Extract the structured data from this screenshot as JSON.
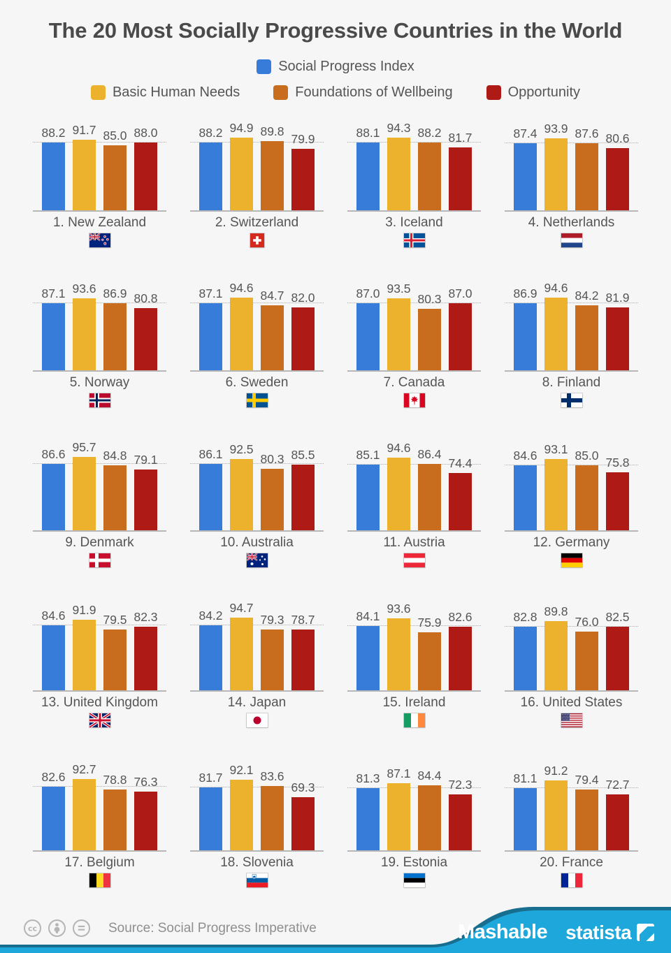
{
  "title": "The 20 Most Socially Progressive Countries in the World",
  "chart_data": {
    "type": "bar",
    "ylim": [
      0,
      100
    ],
    "gridline": "dotted reference line at the Social Progress Index value of each country",
    "series": [
      {
        "name": "Social Progress Index",
        "color": "#377cd8"
      },
      {
        "name": "Basic Human Needs",
        "color": "#ecb22d"
      },
      {
        "name": "Foundations of Wellbeing",
        "color": "#c76d1d"
      },
      {
        "name": "Opportunity",
        "color": "#ae1a15"
      }
    ],
    "countries": [
      {
        "rank": 1,
        "name": "New Zealand",
        "label": "1. New Zealand",
        "flag": "new-zealand",
        "values": [
          88.2,
          91.7,
          85.0,
          88.0
        ]
      },
      {
        "rank": 2,
        "name": "Switzerland",
        "label": "2. Switzerland",
        "flag": "switzerland",
        "values": [
          88.2,
          94.9,
          89.8,
          79.9
        ]
      },
      {
        "rank": 3,
        "name": "Iceland",
        "label": "3. Iceland",
        "flag": "iceland",
        "values": [
          88.1,
          94.3,
          88.2,
          81.7
        ]
      },
      {
        "rank": 4,
        "name": "Netherlands",
        "label": "4. Netherlands",
        "flag": "netherlands",
        "values": [
          87.4,
          93.9,
          87.6,
          80.6
        ]
      },
      {
        "rank": 5,
        "name": "Norway",
        "label": "5. Norway",
        "flag": "norway",
        "values": [
          87.1,
          93.6,
          86.9,
          80.8
        ]
      },
      {
        "rank": 6,
        "name": "Sweden",
        "label": "6. Sweden",
        "flag": "sweden",
        "values": [
          87.1,
          94.6,
          84.7,
          82.0
        ]
      },
      {
        "rank": 7,
        "name": "Canada",
        "label": "7. Canada",
        "flag": "canada",
        "values": [
          87.0,
          93.5,
          80.3,
          87.0
        ]
      },
      {
        "rank": 8,
        "name": "Finland",
        "label": "8. Finland",
        "flag": "finland",
        "values": [
          86.9,
          94.6,
          84.2,
          81.9
        ]
      },
      {
        "rank": 9,
        "name": "Denmark",
        "label": "9. Denmark",
        "flag": "denmark",
        "values": [
          86.6,
          95.7,
          84.8,
          79.1
        ]
      },
      {
        "rank": 10,
        "name": "Australia",
        "label": "10. Australia",
        "flag": "australia",
        "values": [
          86.1,
          92.5,
          80.3,
          85.5
        ]
      },
      {
        "rank": 11,
        "name": "Austria",
        "label": "11. Austria",
        "flag": "austria",
        "values": [
          85.1,
          94.6,
          86.4,
          74.4
        ]
      },
      {
        "rank": 12,
        "name": "Germany",
        "label": "12. Germany",
        "flag": "germany",
        "values": [
          84.6,
          93.1,
          85.0,
          75.8
        ]
      },
      {
        "rank": 13,
        "name": "United Kingdom",
        "label": "13. United Kingdom",
        "flag": "united-kingdom",
        "values": [
          84.6,
          91.9,
          79.5,
          82.3
        ]
      },
      {
        "rank": 14,
        "name": "Japan",
        "label": "14. Japan",
        "flag": "japan",
        "values": [
          84.2,
          94.7,
          79.3,
          78.7
        ]
      },
      {
        "rank": 15,
        "name": "Ireland",
        "label": "15. Ireland",
        "flag": "ireland",
        "values": [
          84.1,
          93.6,
          75.9,
          82.6
        ]
      },
      {
        "rank": 16,
        "name": "United States",
        "label": "16. United States",
        "flag": "united-states",
        "values": [
          82.8,
          89.8,
          76.0,
          82.5
        ]
      },
      {
        "rank": 17,
        "name": "Belgium",
        "label": "17. Belgium",
        "flag": "belgium",
        "values": [
          82.6,
          92.7,
          78.8,
          76.3
        ]
      },
      {
        "rank": 18,
        "name": "Slovenia",
        "label": "18. Slovenia",
        "flag": "slovenia",
        "values": [
          81.7,
          92.1,
          83.6,
          69.3
        ]
      },
      {
        "rank": 19,
        "name": "Estonia",
        "label": "19. Estonia",
        "flag": "estonia",
        "values": [
          81.3,
          87.1,
          84.4,
          72.3
        ]
      },
      {
        "rank": 20,
        "name": "France",
        "label": "20. France",
        "flag": "france",
        "values": [
          81.1,
          91.2,
          79.4,
          72.7
        ]
      }
    ]
  },
  "footer": {
    "source": "Source: Social Progress Imperative",
    "license_icons": [
      "cc-icon",
      "attribution-icon",
      "equality-icon"
    ],
    "brands": {
      "mashable": "Mashable",
      "statista": "statista"
    },
    "colors": {
      "banner": "#1ea7db",
      "banner_accent": "#176e8e"
    }
  }
}
